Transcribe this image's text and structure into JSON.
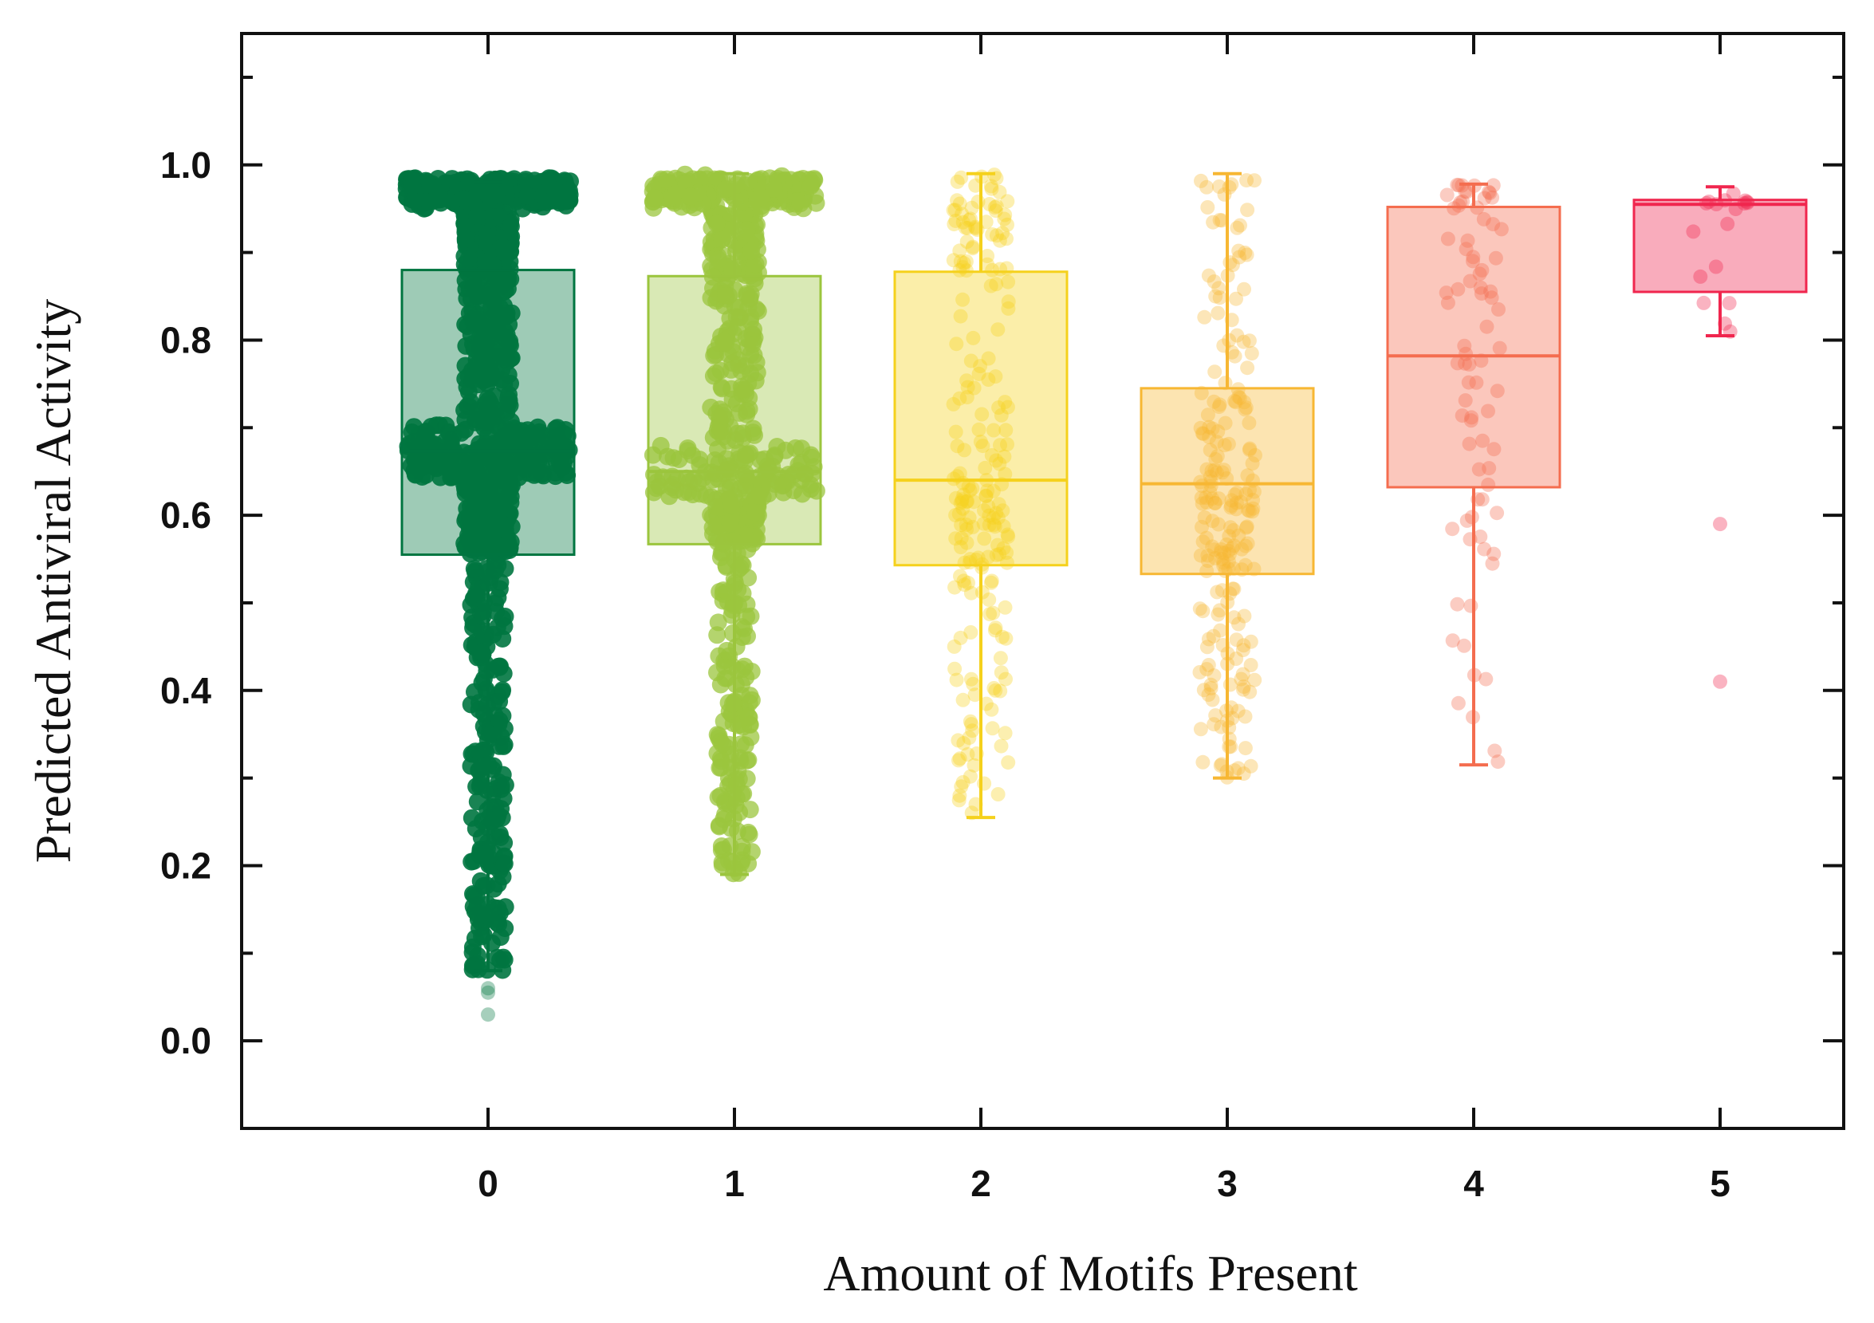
{
  "chart_data": {
    "type": "box",
    "title": "",
    "xlabel": "Amount of Motifs Present",
    "ylabel": "Predicted Antiviral Activity",
    "categories": [
      "0",
      "1",
      "2",
      "3",
      "4",
      "5"
    ],
    "ylim": [
      -0.1,
      1.15
    ],
    "yticks": [
      "0.0",
      "0.2",
      "0.4",
      "0.6",
      "0.8",
      "1.0"
    ],
    "grid": false,
    "legend": "none",
    "boxes": [
      {
        "category": "0",
        "whisker_low": 0.08,
        "q1": 0.555,
        "median": 0.673,
        "q3": 0.88,
        "whisker_high": 0.98,
        "color": "#007540",
        "point_density": "very high",
        "outliers": [
          0.06,
          0.055,
          0.03
        ]
      },
      {
        "category": "1",
        "whisker_low": 0.19,
        "q1": 0.567,
        "median": 0.65,
        "q3": 0.873,
        "whisker_high": 0.99,
        "color": "#9bc53d",
        "point_density": "high",
        "outliers": []
      },
      {
        "category": "2",
        "whisker_low": 0.255,
        "q1": 0.543,
        "median": 0.64,
        "q3": 0.878,
        "whisker_high": 0.99,
        "color": "#f5d11c",
        "point_density": "medium",
        "outliers": []
      },
      {
        "category": "3",
        "whisker_low": 0.3,
        "q1": 0.533,
        "median": 0.636,
        "q3": 0.745,
        "whisker_high": 0.99,
        "color": "#f7b733",
        "point_density": "medium",
        "outliers": []
      },
      {
        "category": "4",
        "whisker_low": 0.315,
        "q1": 0.632,
        "median": 0.782,
        "q3": 0.952,
        "whisker_high": 0.978,
        "color": "#f46d4f",
        "point_density": "low",
        "outliers": []
      },
      {
        "category": "5",
        "whisker_low": 0.805,
        "q1": 0.855,
        "median": 0.955,
        "q3": 0.96,
        "whisker_high": 0.975,
        "color": "#f0264e",
        "point_density": "very low",
        "outliers": [
          0.59,
          0.41
        ]
      }
    ]
  }
}
